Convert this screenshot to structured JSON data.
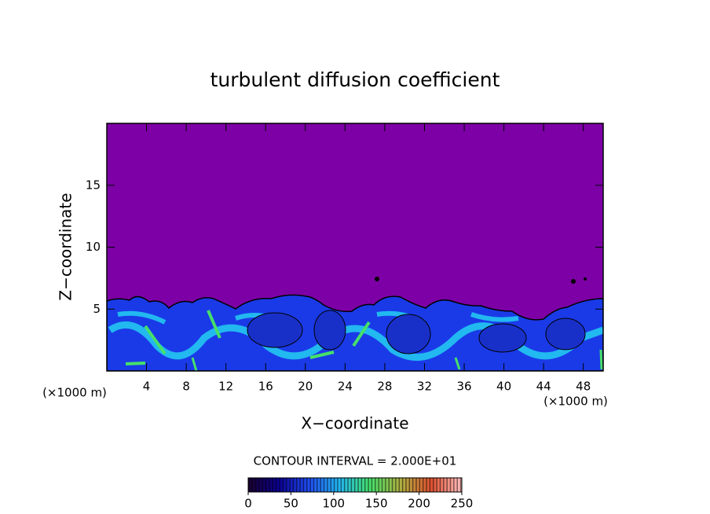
{
  "chart_data": {
    "type": "contour",
    "title": "turbulent diffusion coefficient",
    "x_label": "X−coordinate",
    "y_label": "Z−coordinate",
    "x_unit": "(×1000 m)",
    "y_unit": "(×1000 m)",
    "xlim": [
      0,
      50
    ],
    "xticks": [
      4,
      8,
      12,
      16,
      20,
      24,
      28,
      32,
      36,
      40,
      44,
      48
    ],
    "ylim": [
      0,
      20
    ],
    "yticks": [
      5,
      10,
      15
    ],
    "background_color": "#7d00a6",
    "colorbar": {
      "title": "CONTOUR INTERVAL = 2.000E+01",
      "lim": [
        0,
        250
      ],
      "ticks": [
        0,
        50,
        100,
        150,
        200,
        250
      ],
      "colormap": [
        "#1a0030",
        "#0a0090",
        "#1f4cf0",
        "#22b8f0",
        "#46e06a",
        "#b0b040",
        "#e05030",
        "#ffc0c0"
      ]
    }
  }
}
